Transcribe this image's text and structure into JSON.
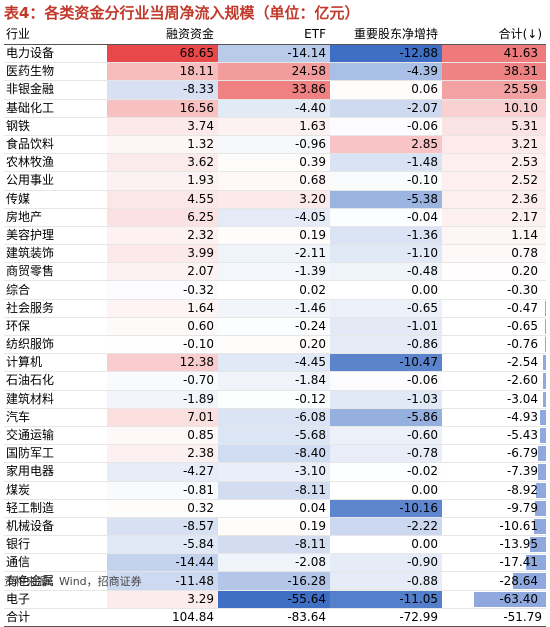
{
  "title": "表4：各类资金分行业当周净流入规模（单位：亿元）",
  "headers": [
    "行业",
    "融资资金",
    "ETF",
    "重要股东净增持",
    "合计(↓)"
  ],
  "rows": [
    [
      "电力设备",
      68.65,
      -14.14,
      -12.88,
      41.63
    ],
    [
      "医药生物",
      18.11,
      24.58,
      -4.39,
      38.31
    ],
    [
      "非银金融",
      -8.33,
      33.86,
      0.06,
      25.59
    ],
    [
      "基础化工",
      16.56,
      -4.4,
      -2.07,
      10.1
    ],
    [
      "钢铁",
      3.74,
      1.63,
      -0.06,
      5.31
    ],
    [
      "食品饮料",
      1.32,
      -0.96,
      2.85,
      3.21
    ],
    [
      "农林牧渔",
      3.62,
      0.39,
      -1.48,
      2.53
    ],
    [
      "公用事业",
      1.93,
      0.68,
      -0.1,
      2.52
    ],
    [
      "传媒",
      4.55,
      3.2,
      -5.38,
      2.36
    ],
    [
      "房地产",
      6.25,
      -4.05,
      -0.04,
      2.17
    ],
    [
      "美容护理",
      2.32,
      0.19,
      -1.36,
      1.14
    ],
    [
      "建筑装饰",
      3.99,
      -2.11,
      -1.1,
      0.78
    ],
    [
      "商贸零售",
      2.07,
      -1.39,
      -0.48,
      0.2
    ],
    [
      "综合",
      -0.32,
      0.02,
      0.0,
      -0.3
    ],
    [
      "社会服务",
      1.64,
      -1.46,
      -0.65,
      -0.47
    ],
    [
      "环保",
      0.6,
      -0.24,
      -1.01,
      -0.65
    ],
    [
      "纺织服饰",
      -0.1,
      0.2,
      -0.86,
      -0.76
    ],
    [
      "计算机",
      12.38,
      -4.45,
      -10.47,
      -2.54
    ],
    [
      "石油石化",
      -0.7,
      -1.84,
      -0.06,
      -2.6
    ],
    [
      "建筑材料",
      -1.89,
      -0.12,
      -1.03,
      -3.04
    ],
    [
      "汽车",
      7.01,
      -6.08,
      -5.86,
      -4.93
    ],
    [
      "交通运输",
      0.85,
      -5.68,
      -0.6,
      -5.43
    ],
    [
      "国防军工",
      2.38,
      -8.4,
      -0.78,
      -6.79
    ],
    [
      "家用电器",
      -4.27,
      -3.1,
      -0.02,
      -7.39
    ],
    [
      "煤炭",
      -0.81,
      -8.11,
      0.0,
      -8.92
    ],
    [
      "轻工制造",
      0.32,
      0.04,
      -10.16,
      -9.79
    ],
    [
      "机械设备",
      -8.57,
      0.19,
      -2.22,
      -10.61
    ],
    [
      "银行",
      -5.84,
      -8.11,
      0.0,
      -13.95
    ],
    [
      "通信",
      -14.44,
      -2.08,
      -0.9,
      -17.41
    ],
    [
      "有色金属",
      -11.48,
      -16.28,
      -0.88,
      -28.64
    ],
    [
      "电子",
      3.29,
      -55.64,
      -11.05,
      -63.4
    ]
  ],
  "total": [
    "合计",
    104.84,
    -83.64,
    -72.99,
    -51.79
  ],
  "source": "资料来源：Wind，招商证券",
  "colors": {
    "positive": "#e8484a",
    "negative": "#3f6fc4",
    "bar": "#8fa9de",
    "title": "#c0392b"
  }
}
